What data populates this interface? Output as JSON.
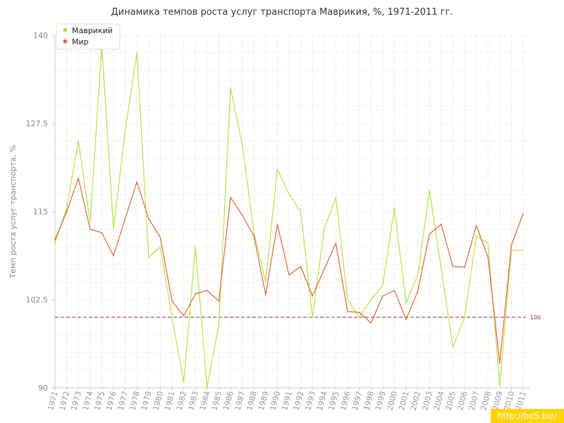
{
  "chart_data": {
    "type": "line",
    "title": "Динамика темпов роста услуг транспорта Маврикия, %, 1971-2011 гг.",
    "ylabel": "Темп роста услуг транспорта, %",
    "xlabel": "",
    "ylim": [
      90,
      140
    ],
    "yticks": [
      "90",
      "102.5",
      "115",
      "127.5",
      "140"
    ],
    "grid": true,
    "legend_position": "top-left",
    "reference_line": {
      "value": 100,
      "label": "100",
      "color": "#8b2b45"
    },
    "x": [
      "1971",
      "1972",
      "1973",
      "1974",
      "1975",
      "1976",
      "1977",
      "1978",
      "1979",
      "1980",
      "1981",
      "1982",
      "1983",
      "1984",
      "1985",
      "1986",
      "1987",
      "1988",
      "1989",
      "1990",
      "1991",
      "1992",
      "1993",
      "1994",
      "1995",
      "1996",
      "1997",
      "1998",
      "1999",
      "2000",
      "2001",
      "2002",
      "2003",
      "2004",
      "2005",
      "2006",
      "2007",
      "2008",
      "2009",
      "2010",
      "2011"
    ],
    "series": [
      {
        "name": "Маврикий",
        "color": "#b8e04a",
        "values": [
          110.5,
          115.5,
          125.0,
          113.5,
          138.5,
          112.5,
          126.5,
          137.5,
          108.5,
          110.0,
          100.0,
          90.8,
          110.0,
          90.0,
          99.0,
          132.5,
          124.5,
          112.0,
          105.0,
          121.0,
          117.5,
          115.0,
          100.0,
          112.5,
          117.0,
          102.5,
          100.0,
          102.5,
          104.5,
          115.5,
          102.0,
          106.0,
          118.0,
          107.0,
          95.8,
          100.0,
          111.5,
          110.5,
          90.3,
          109.5,
          109.5
        ]
      },
      {
        "name": "Мир",
        "color": "#e0673a",
        "values": [
          111.0,
          115.0,
          119.7,
          112.5,
          112.0,
          108.7,
          114.0,
          119.2,
          114.0,
          111.3,
          102.3,
          100.2,
          103.3,
          103.8,
          102.3,
          117.0,
          114.5,
          111.5,
          103.2,
          113.2,
          106.0,
          107.2,
          103.0,
          106.8,
          110.5,
          100.8,
          100.7,
          99.2,
          103.0,
          103.8,
          99.7,
          103.7,
          111.8,
          113.2,
          107.2,
          107.1,
          113.0,
          108.5,
          93.5,
          110.2,
          114.7
        ]
      }
    ]
  },
  "watermark": "http://be5.biz/"
}
